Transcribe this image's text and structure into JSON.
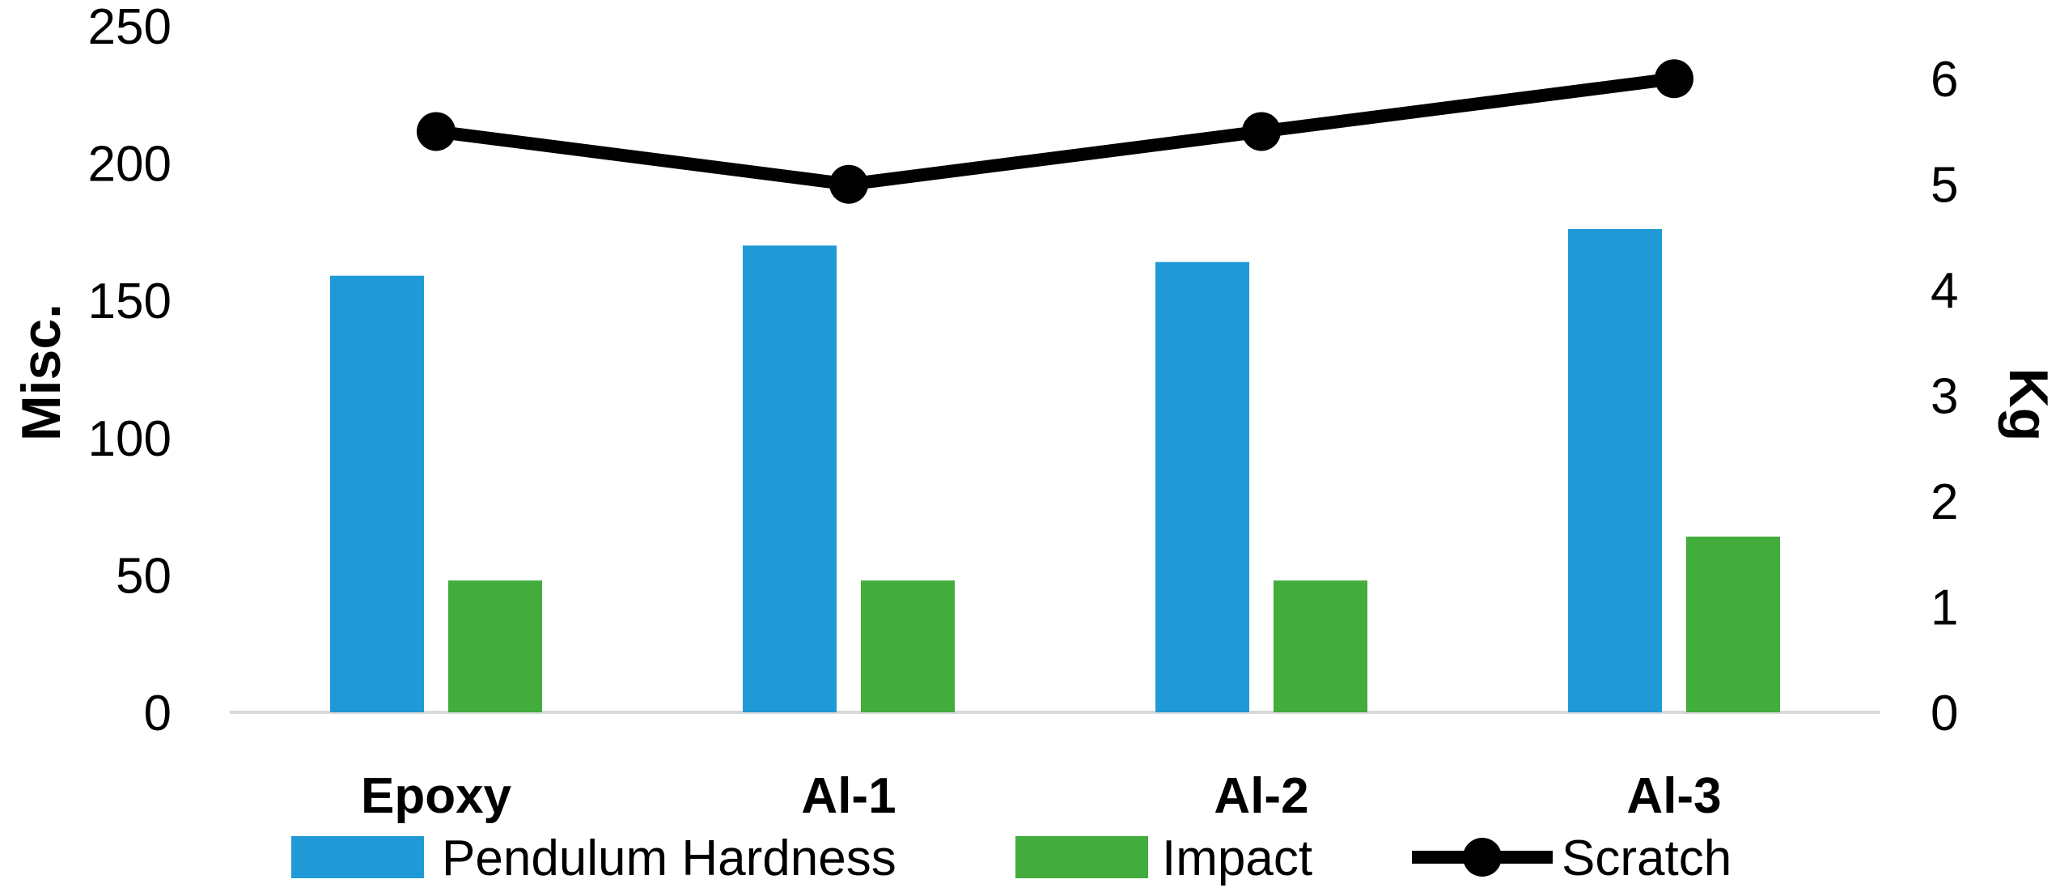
{
  "chart_data": {
    "type": "bar",
    "categories": [
      "Epoxy",
      "Al-1",
      "Al-2",
      "Al-3"
    ],
    "series": [
      {
        "name": "Pendulum Hardness",
        "type": "bar",
        "axis": "left",
        "color": "#1f9ad6",
        "values": [
          159,
          170,
          164,
          176
        ]
      },
      {
        "name": "Impact",
        "type": "bar",
        "axis": "left",
        "color": "#42ac3c",
        "values": [
          48,
          48,
          48,
          64
        ]
      },
      {
        "name": "Scratch",
        "type": "line",
        "axis": "right",
        "color": "#000000",
        "values": [
          5.5,
          5,
          5.5,
          6
        ]
      }
    ],
    "ylabel": "Misc.",
    "ylim": [
      0,
      250
    ],
    "yticks": [
      "0",
      "50",
      "100",
      "150",
      "200",
      "250"
    ],
    "y2label": "Kg",
    "y2lim": [
      0,
      6.5
    ],
    "y2ticks": [
      "0",
      "1",
      "2",
      "3",
      "4",
      "5",
      "6"
    ],
    "legend_position": "bottom"
  }
}
